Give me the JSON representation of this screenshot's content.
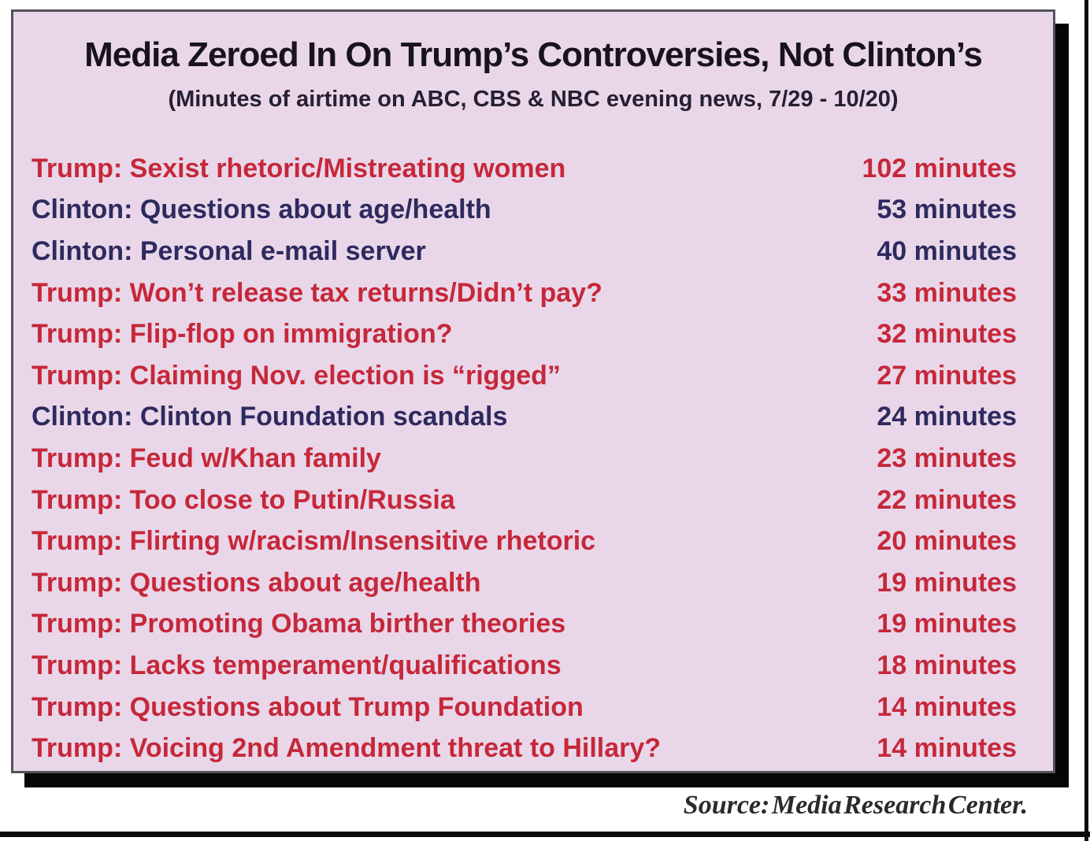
{
  "chart_data": {
    "type": "table",
    "title": "Media Zeroed In On Trump’s Controversies, Not Clinton’s",
    "subtitle": "(Minutes of airtime on ABC, CBS & NBC evening news, 7/29 - 10/20)",
    "unit": "minutes",
    "rows": [
      {
        "label": "Trump: Sexist rhetoric/Mistreating women",
        "minutes": 102,
        "value_text": "102 minutes",
        "party": "trump"
      },
      {
        "label": "Clinton: Questions about age/health",
        "minutes": 53,
        "value_text": "53 minutes",
        "party": "clinton"
      },
      {
        "label": "Clinton: Personal e-mail server",
        "minutes": 40,
        "value_text": "40 minutes",
        "party": "clinton"
      },
      {
        "label": "Trump: Won’t release tax returns/Didn’t pay?",
        "minutes": 33,
        "value_text": "33 minutes",
        "party": "trump"
      },
      {
        "label": "Trump: Flip-flop on immigration?",
        "minutes": 32,
        "value_text": "32 minutes",
        "party": "trump"
      },
      {
        "label": "Trump: Claiming Nov. election is “rigged”",
        "minutes": 27,
        "value_text": "27 minutes",
        "party": "trump"
      },
      {
        "label": "Clinton: Clinton Foundation scandals",
        "minutes": 24,
        "value_text": "24 minutes",
        "party": "clinton"
      },
      {
        "label": "Trump: Feud w/Khan family",
        "minutes": 23,
        "value_text": "23 minutes",
        "party": "trump"
      },
      {
        "label": "Trump: Too close to Putin/Russia",
        "minutes": 22,
        "value_text": "22 minutes",
        "party": "trump"
      },
      {
        "label": "Trump: Flirting w/racism/Insensitive rhetoric",
        "minutes": 20,
        "value_text": "20 minutes",
        "party": "trump"
      },
      {
        "label": "Trump: Questions about age/health",
        "minutes": 19,
        "value_text": "19 minutes",
        "party": "trump"
      },
      {
        "label": "Trump: Promoting Obama birther theories",
        "minutes": 19,
        "value_text": "19 minutes",
        "party": "trump"
      },
      {
        "label": "Trump: Lacks temperament/qualifications",
        "minutes": 18,
        "value_text": "18 minutes",
        "party": "trump"
      },
      {
        "label": "Trump: Questions about Trump Foundation",
        "minutes": 14,
        "value_text": "14 minutes",
        "party": "trump"
      },
      {
        "label": "Trump: Voicing 2nd Amendment threat to Hillary?",
        "minutes": 14,
        "value_text": "14 minutes",
        "party": "trump"
      }
    ],
    "source": "Source: Media Research Center.",
    "legend_position": "none",
    "grid": false,
    "colors": {
      "trump": "#c5283a",
      "clinton": "#2e2a5f",
      "title": "#18131d",
      "subtitle": "#262030",
      "panel_bg": "#e9d7e9",
      "panel_border": "#55525a",
      "shadow": "#060606",
      "source": "#2a2a2a"
    }
  }
}
